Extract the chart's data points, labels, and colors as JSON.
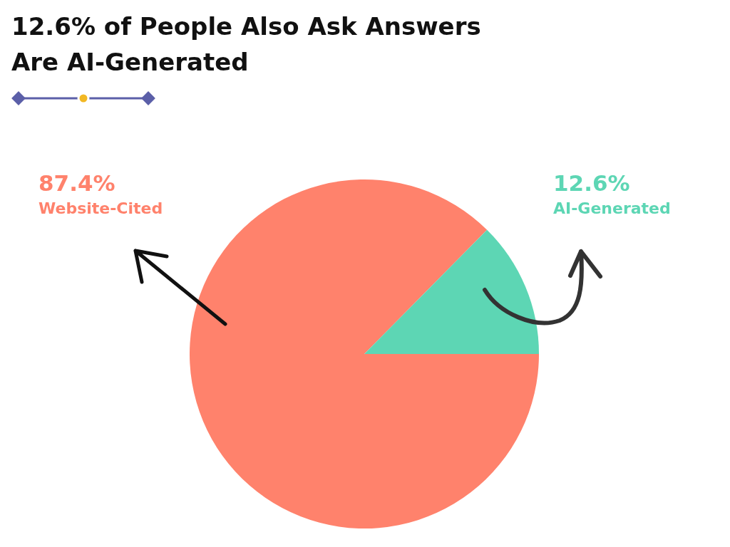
{
  "chart_data": {
    "type": "pie",
    "title": "12.6% of People Also Ask Answers Are AI-Generated",
    "categories": [
      "Website-Cited",
      "AI-Generated"
    ],
    "values": [
      87.4,
      12.6
    ],
    "colors": [
      "#ff826c",
      "#5dd6b4"
    ],
    "value_labels": [
      "87.4%",
      "12.6%"
    ]
  }
}
